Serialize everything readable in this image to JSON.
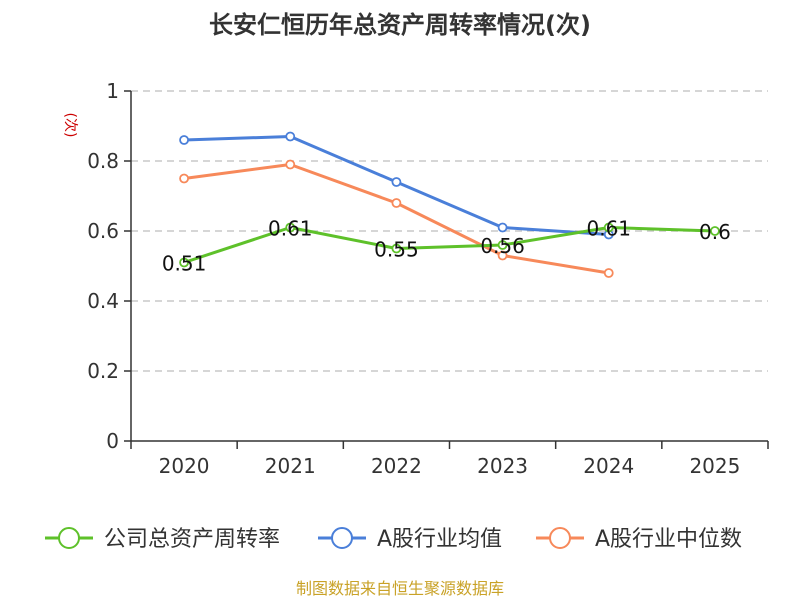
{
  "colors": {
    "company": "#5ec12a",
    "average": "#4a7fd9",
    "median": "#f7895a",
    "source": "#c9a227",
    "unit": "#cc0000"
  },
  "chart_data": {
    "type": "line",
    "title": "长安仁恒历年总资产周转率情况(次)",
    "ylabel": "(次)",
    "xlabel": "",
    "categories": [
      "2020",
      "2021",
      "2022",
      "2023",
      "2024",
      "2025"
    ],
    "ylim": [
      0,
      1
    ],
    "yticks": [
      0,
      0.2,
      0.4,
      0.6,
      0.8,
      1
    ],
    "ytick_labels": [
      "0",
      "0.2",
      "0.4",
      "0.6",
      "0.8",
      "1"
    ],
    "grid": true,
    "legend_position": "bottom",
    "series": [
      {
        "name": "公司总资产周转率",
        "key": "company",
        "values": [
          0.51,
          0.61,
          0.55,
          0.56,
          0.61,
          0.6
        ],
        "labels": [
          "0.51",
          "0.61",
          "0.55",
          "0.56",
          "0.61",
          "0.6"
        ]
      },
      {
        "name": "A股行业均值",
        "key": "average",
        "values": [
          0.86,
          0.87,
          0.74,
          0.61,
          0.59,
          null
        ]
      },
      {
        "name": "A股行业中位数",
        "key": "median",
        "values": [
          0.75,
          0.79,
          0.68,
          0.53,
          0.48,
          null
        ]
      }
    ]
  },
  "source_note": "制图数据来自恒生聚源数据库"
}
